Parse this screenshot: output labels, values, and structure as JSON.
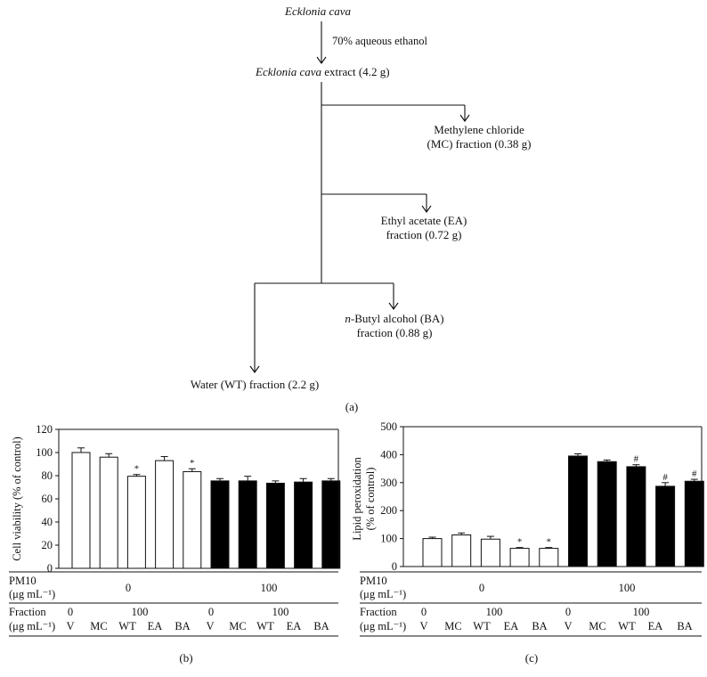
{
  "flowchart": {
    "source": "Ecklonia cava",
    "solvent": "70% aqueous ethanol",
    "extract_name": "Ecklonia cava",
    "extract_amount": " extract (4.2 g)",
    "mc_line1": "Methylene chloride",
    "mc_line2": "(MC) fraction (0.38 g)",
    "ea_line1": "Ethyl acetate (EA)",
    "ea_line2": "fraction (0.72 g)",
    "ba_prefix": "n",
    "ba_rest": "-Butyl alcohol (BA)",
    "ba_line2": "fraction (0.88 g)",
    "wt": "Water (WT) fraction (2.2 g)",
    "panel_label": "(a)"
  },
  "treatment_table": {
    "pm10_label": "PM10",
    "pm10_unit": "(μg mL⁻¹)",
    "pm10_values": [
      "0",
      "100"
    ],
    "fraction_label": "Fraction",
    "fraction_unit": "(μg mL⁻¹)",
    "fraction_conc": [
      "0",
      "100",
      "0",
      "100"
    ],
    "groups": [
      "V",
      "MC",
      "WT",
      "EA",
      "BA",
      "V",
      "MC",
      "WT",
      "EA",
      "BA"
    ]
  },
  "chart_data": [
    {
      "type": "bar",
      "panel": "(b)",
      "ylabel": "Cell viability (% of control)",
      "ylim": [
        0,
        120
      ],
      "yticks": [
        "0",
        "20",
        "40",
        "60",
        "80",
        "100",
        "120"
      ],
      "categories": [
        "V",
        "MC",
        "WT",
        "EA",
        "BA",
        "V",
        "MC",
        "WT",
        "EA",
        "BA"
      ],
      "values": [
        100,
        96,
        79.5,
        93,
        83.5,
        75.5,
        75.5,
        73.5,
        74.5,
        75.5
      ],
      "errors": [
        4,
        3,
        1.5,
        3.5,
        2.5,
        2,
        4,
        2,
        3,
        2
      ],
      "fill": [
        "white",
        "white",
        "white",
        "white",
        "white",
        "black",
        "black",
        "black",
        "black",
        "black"
      ],
      "annotations": [
        "",
        "",
        "*",
        "",
        "*",
        "",
        "",
        "",
        "",
        ""
      ]
    },
    {
      "type": "bar",
      "panel": "(c)",
      "ylabel_line1": "Lipid peroxidation",
      "ylabel_line2": "(% of control)",
      "ylim": [
        0,
        500
      ],
      "yticks": [
        "0",
        "100",
        "200",
        "300",
        "400",
        "500"
      ],
      "categories": [
        "V",
        "MC",
        "WT",
        "EA",
        "BA",
        "V",
        "MC",
        "WT",
        "EA",
        "BA"
      ],
      "values": [
        100,
        113,
        98,
        65,
        65,
        395,
        375,
        357,
        287,
        305
      ],
      "errors": [
        5,
        7,
        10,
        3,
        3,
        8,
        6,
        7,
        13,
        7
      ],
      "fill": [
        "white",
        "white",
        "white",
        "white",
        "white",
        "black",
        "black",
        "black",
        "black",
        "black"
      ],
      "annotations": [
        "",
        "",
        "",
        "*",
        "*",
        "",
        "",
        "#",
        "#",
        "#"
      ]
    }
  ]
}
